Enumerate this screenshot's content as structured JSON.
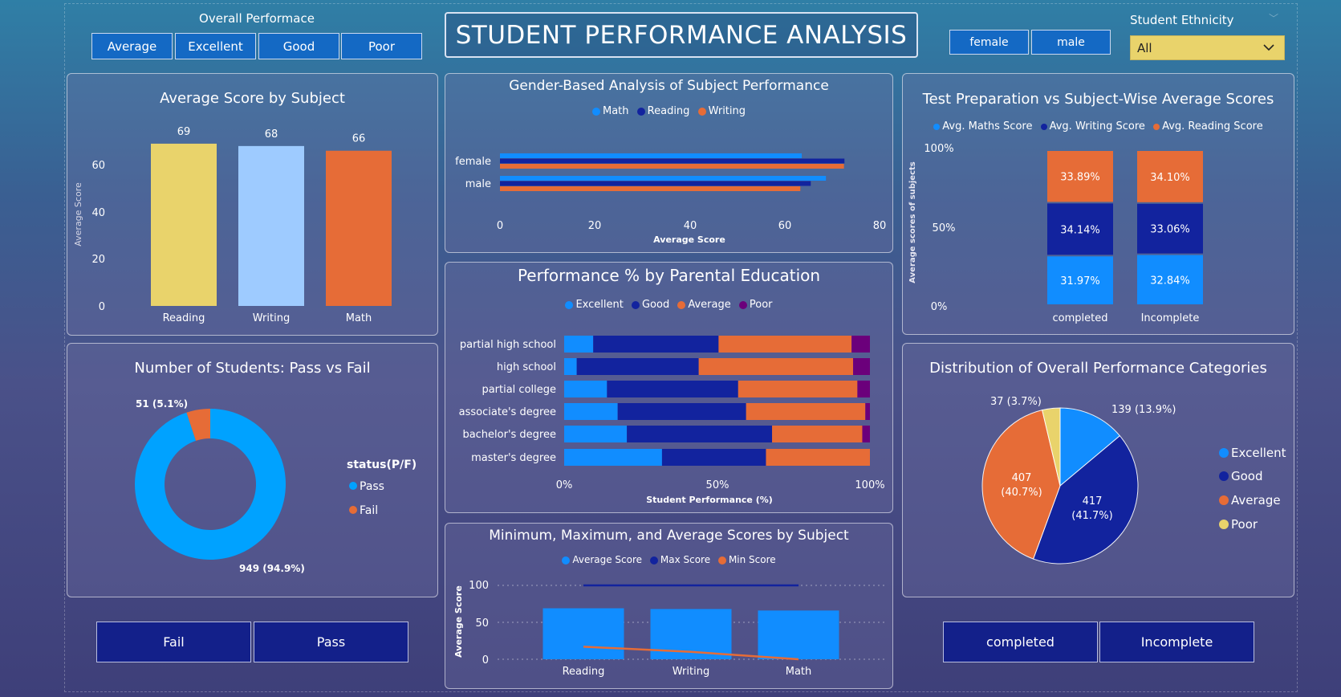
{
  "title": "STUDENT PERFORMANCE ANALYSIS",
  "perf_slicer": {
    "label": "Overall Performace",
    "options": [
      "Average",
      "Excellent",
      "Good",
      "Poor"
    ]
  },
  "gender_slicer": {
    "options": [
      "female",
      "male"
    ]
  },
  "ethnicity_slicer": {
    "label": "Student Ethnicity",
    "value": "All"
  },
  "status_buttons": [
    "Fail",
    "Pass"
  ],
  "prep_buttons": [
    "completed",
    "Incomplete"
  ],
  "colors": {
    "yellow": "#e9d36b",
    "lightblue": "#9ecbff",
    "orange": "#e66c37",
    "blue": "#118dff",
    "navy": "#12239e",
    "purple": "#6b007b",
    "pass": "#00a2ff"
  },
  "charts": {
    "avg_score": {
      "title": "Average Score by Subject",
      "ylabel": "Average Score",
      "yticks": [
        "0",
        "20",
        "40",
        "60"
      ],
      "value_labels": [
        "69",
        "68",
        "66"
      ],
      "category_labels": [
        "Reading",
        "Writing",
        "Math"
      ]
    },
    "gender": {
      "title": "Gender-Based Analysis of Subject Performance",
      "legend": [
        "Math",
        "Reading",
        "Writing"
      ],
      "category_labels": [
        "female",
        "male"
      ],
      "xticks": [
        "0",
        "20",
        "40",
        "60",
        "80"
      ],
      "xlabel": "Average Score"
    },
    "prep": {
      "title": "Test Preparation vs Subject-Wise Average Scores",
      "legend": [
        "Avg. Maths Score",
        "Avg. Writing Score",
        "Avg. Reading Score"
      ],
      "ylabel": "Average scores of subjects",
      "yticks": [
        "0%",
        "50%",
        "100%"
      ],
      "category_labels": [
        "completed",
        "Incomplete"
      ],
      "segment_labels": [
        [
          "31.97%",
          "34.14%",
          "33.89%"
        ],
        [
          "32.84%",
          "33.06%",
          "34.10%"
        ]
      ]
    },
    "parental": {
      "title": "Performance % by Parental Education",
      "legend": [
        "Excellent",
        "Good",
        "Average",
        "Poor"
      ],
      "category_labels": [
        "partial high school",
        "high school",
        "partial college",
        "associate's degree",
        "bachelor's degree",
        "master's degree"
      ],
      "xticks": [
        "0%",
        "50%",
        "100%"
      ],
      "xlabel": "Student Performance (%)"
    },
    "pass_fail": {
      "title": "Number of Students: Pass vs Fail",
      "legend_title": "status(P/F)",
      "legend": [
        "Pass",
        "Fail"
      ],
      "labels": [
        "949 (94.9%)",
        "51 (5.1%)"
      ]
    },
    "minmax": {
      "title": "Minimum, Maximum, and Average Scores by Subject",
      "legend": [
        "Average Score",
        "Max Score",
        "Min Score"
      ],
      "ylabel": "Average Score",
      "yticks": [
        "0",
        "50",
        "100"
      ],
      "category_labels": [
        "Reading",
        "Writing",
        "Math"
      ]
    },
    "distribution": {
      "title": "Distribution of Overall Performance Categories",
      "legend": [
        "Excellent",
        "Good",
        "Average",
        "Poor"
      ],
      "labels": [
        "139 (13.9%)",
        "417",
        "(41.7%)",
        "407",
        "(40.7%)",
        "37 (3.7%)"
      ]
    }
  },
  "chart_data": [
    {
      "type": "bar",
      "title": "Average Score by Subject",
      "categories": [
        "Reading",
        "Writing",
        "Math"
      ],
      "values": [
        69,
        68,
        66
      ],
      "ylabel": "Average Score",
      "ylim": [
        0,
        70
      ]
    },
    {
      "type": "bar",
      "title": "Gender-Based Analysis of Subject Performance",
      "orientation": "horizontal",
      "categories": [
        "female",
        "male"
      ],
      "xlabel": "Average Score",
      "xlim": [
        0,
        80
      ],
      "series": [
        {
          "name": "Math",
          "values": [
            63.6,
            68.7
          ]
        },
        {
          "name": "Reading",
          "values": [
            72.6,
            65.5
          ]
        },
        {
          "name": "Writing",
          "values": [
            72.5,
            63.3
          ]
        }
      ]
    },
    {
      "type": "bar",
      "title": "Test Preparation vs Subject-Wise Average Scores",
      "stacked": true,
      "percent": true,
      "categories": [
        "completed",
        "Incomplete"
      ],
      "ylabel": "Average scores of subjects",
      "series": [
        {
          "name": "Avg. Maths Score",
          "values": [
            31.97,
            32.84
          ]
        },
        {
          "name": "Avg. Writing Score",
          "values": [
            34.14,
            33.06
          ]
        },
        {
          "name": "Avg. Reading Score",
          "values": [
            33.89,
            34.1
          ]
        }
      ]
    },
    {
      "type": "bar",
      "title": "Performance % by Parental Education",
      "orientation": "horizontal",
      "stacked": true,
      "percent": true,
      "categories": [
        "partial high school",
        "high school",
        "partial college",
        "associate's degree",
        "bachelor's degree",
        "master's degree"
      ],
      "xlabel": "Student Performance (%)",
      "series": [
        {
          "name": "Excellent",
          "values": [
            9.5,
            4.1,
            14.0,
            17.5,
            20.5,
            32.0
          ]
        },
        {
          "name": "Good",
          "values": [
            41.0,
            39.9,
            42.9,
            42.0,
            47.5,
            34.0
          ]
        },
        {
          "name": "Average",
          "values": [
            43.5,
            50.5,
            39.0,
            39.0,
            29.5,
            34.0
          ]
        },
        {
          "name": "Poor",
          "values": [
            6.0,
            5.5,
            4.1,
            1.5,
            2.5,
            0.0
          ]
        }
      ]
    },
    {
      "type": "pie",
      "title": "Number of Students: Pass vs Fail",
      "donut": true,
      "categories": [
        "Pass",
        "Fail"
      ],
      "values": [
        949,
        51
      ]
    },
    {
      "type": "bar",
      "title": "Minimum, Maximum, and Average Scores by Subject",
      "categories": [
        "Reading",
        "Writing",
        "Math"
      ],
      "ylabel": "Average Score",
      "ylim": [
        0,
        100
      ],
      "series": [
        {
          "name": "Average Score",
          "type": "bar",
          "values": [
            69,
            68,
            66
          ]
        },
        {
          "name": "Max Score",
          "type": "line",
          "values": [
            100,
            100,
            100
          ]
        },
        {
          "name": "Min Score",
          "type": "line",
          "values": [
            17,
            10,
            0
          ]
        }
      ]
    },
    {
      "type": "pie",
      "title": "Distribution of Overall Performance Categories",
      "categories": [
        "Excellent",
        "Good",
        "Average",
        "Poor"
      ],
      "values": [
        139,
        417,
        407,
        37
      ]
    }
  ]
}
